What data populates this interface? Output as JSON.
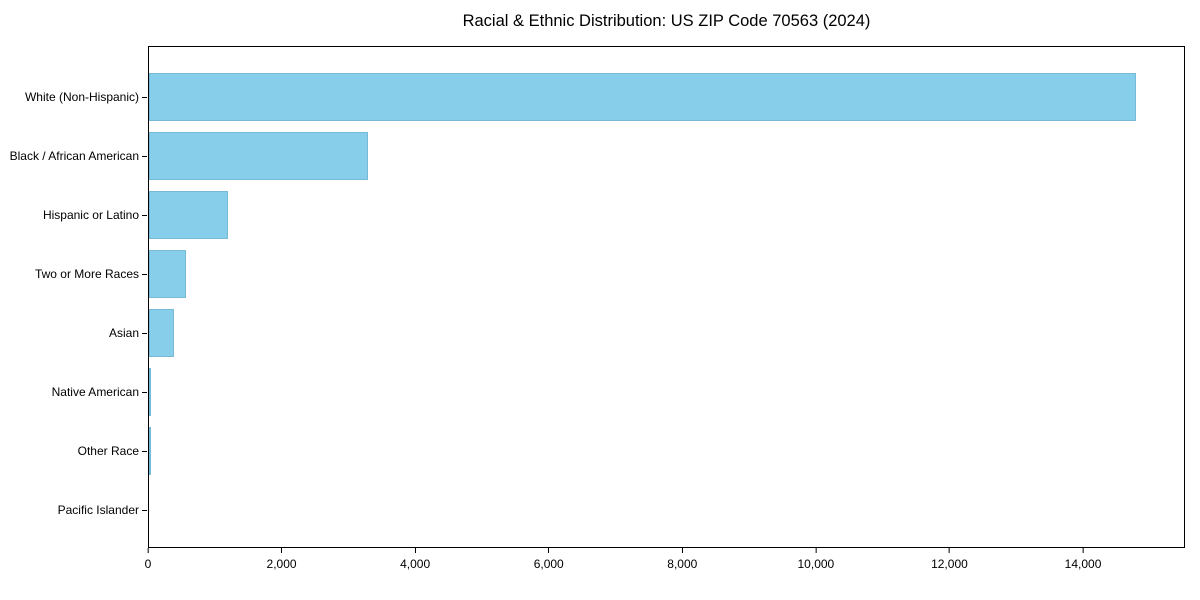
{
  "chart_data": {
    "type": "bar",
    "orientation": "horizontal",
    "title": "Racial & Ethnic Distribution: US ZIP Code 70563 (2024)",
    "xlabel": "",
    "ylabel": "",
    "categories": [
      "White (Non-Hispanic)",
      "Black / African American",
      "Hispanic or Latino",
      "Two or More Races",
      "Asian",
      "Native American",
      "Other Race",
      "Pacific Islander"
    ],
    "values": [
      14800,
      3290,
      1180,
      550,
      370,
      20,
      5,
      0
    ],
    "xlim": [
      0,
      15527
    ],
    "xticks": [
      0,
      2000,
      4000,
      6000,
      8000,
      10000,
      12000,
      14000
    ],
    "xtick_labels": [
      "0",
      "2,000",
      "4,000",
      "6,000",
      "8,000",
      "10,000",
      "12,000",
      "14,000"
    ],
    "bar_color": "#87CEEB",
    "spine_color": "#000000",
    "text_color": "#000000",
    "background_color": "#ffffff",
    "grid": false,
    "legend": false
  }
}
